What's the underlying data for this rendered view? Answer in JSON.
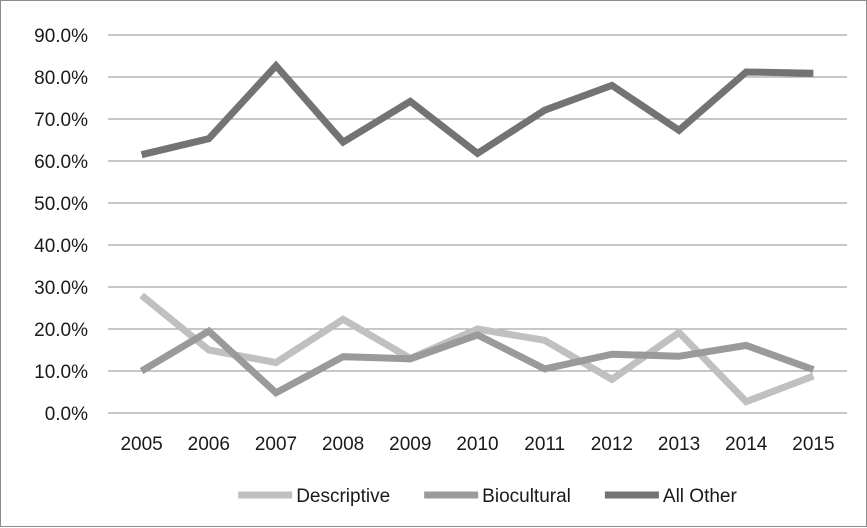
{
  "chart_data": {
    "type": "line",
    "title": "",
    "xlabel": "",
    "ylabel": "",
    "categories": [
      "2005",
      "2006",
      "2007",
      "2008",
      "2009",
      "2010",
      "2011",
      "2012",
      "2013",
      "2014",
      "2015"
    ],
    "ylim": [
      0,
      90
    ],
    "y_ticks": [
      0,
      10,
      20,
      30,
      40,
      50,
      60,
      70,
      80,
      90
    ],
    "y_tick_labels": [
      "0.0%",
      "10.0%",
      "20.0%",
      "30.0%",
      "40.0%",
      "50.0%",
      "60.0%",
      "70.0%",
      "80.0%",
      "90.0%"
    ],
    "grid": "horizontal",
    "legend_position": "bottom",
    "series": [
      {
        "name": "Descriptive",
        "color": "#c0c0c0",
        "values": [
          28.0,
          15.0,
          12.0,
          22.3,
          13.0,
          20.0,
          17.3,
          8.0,
          19.2,
          2.7,
          8.8
        ]
      },
      {
        "name": "Biocultural",
        "color": "#9a9a9a",
        "values": [
          10.0,
          19.5,
          4.8,
          13.4,
          12.9,
          18.6,
          10.5,
          14.0,
          13.5,
          16.1,
          10.3
        ]
      },
      {
        "name": "All Other",
        "color": "#737373",
        "values": [
          61.5,
          65.3,
          82.7,
          64.5,
          74.2,
          61.8,
          72.1,
          78.0,
          67.3,
          81.2,
          80.9
        ]
      }
    ]
  }
}
